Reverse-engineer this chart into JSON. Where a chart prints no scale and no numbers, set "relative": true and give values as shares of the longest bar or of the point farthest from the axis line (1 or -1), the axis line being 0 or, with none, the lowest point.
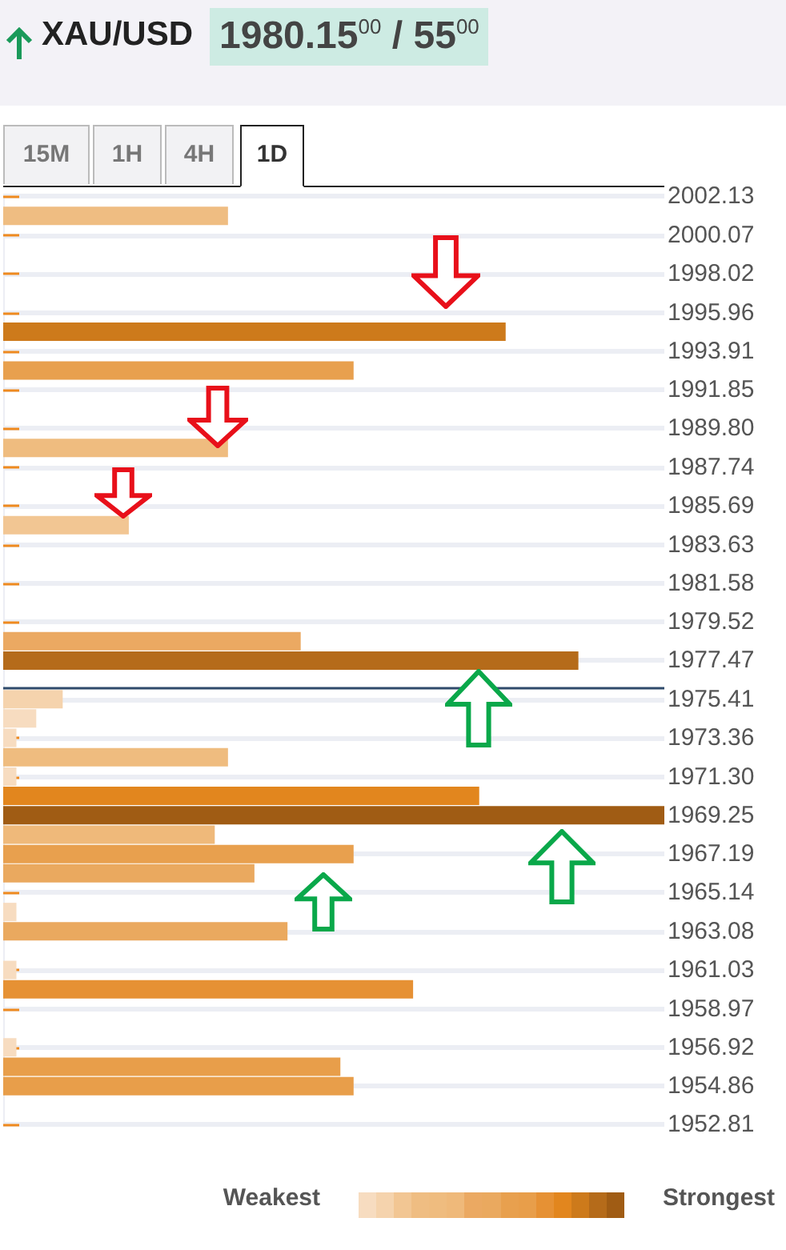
{
  "chart_data": {
    "type": "bar",
    "orientation": "horizontal",
    "relative": true,
    "title": "XAU/USD",
    "subtitle": "1980.15$^{00}$ / 55$^{00}$",
    "annotations": [
      "15M",
      "1H",
      "4H",
      "1D",
      "Weakest",
      "Strongest"
    ],
    "x": [
      2001.1,
      1994.94,
      1992.88,
      1988.77,
      1984.66,
      1978.5,
      1977.47,
      1975.41,
      1974.39,
      1973.36,
      1972.33,
      1971.3,
      1970.28,
      1969.25,
      1968.22,
      1967.19,
      1966.17,
      1964.11,
      1963.08,
      1961.03,
      1960.0,
      1956.92,
      1955.89,
      1954.86
    ],
    "values": [
      0.34,
      0.76,
      0.53,
      0.34,
      0.19,
      0.45,
      0.87,
      0.09,
      0.05,
      0.02,
      0.34,
      0.02,
      0.72,
      1,
      0.32,
      0.53,
      0.38,
      0.02,
      0.43,
      0.02,
      0.62,
      0.02,
      0.51,
      0.53
    ],
    "colors": [
      "#efbd82",
      "#cd7a1b",
      "#e8a04e",
      "#efbc7f",
      "#f2c693",
      "#eba962",
      "#b56b1a",
      "#f5d3ad",
      "#f7dcc0",
      "#f7dcc0",
      "#efbc7f",
      "#f7dcc0",
      "#e2861e",
      "#a05c14",
      "#efb97a",
      "#e8a04e",
      "#eaa95f",
      "#f7dcc0",
      "#eaa95f",
      "#f7dcc0",
      "#e69134",
      "#f7dcc0",
      "#e89e4a",
      "#e89e4a"
    ],
    "ylim": [
      1952.81,
      2002.13
    ],
    "yticks": [
      2002.13,
      2000.07,
      1998.02,
      1995.96,
      1993.91,
      1991.85,
      {
        "value": 1989.8,
        "label": "1989.80"
      },
      1987.74,
      1985.69,
      1983.63,
      1981.58,
      1979.52,
      1977.47,
      1975.41,
      1973.36,
      {
        "value": 1971.3,
        "label": "1971.30"
      },
      1969.25,
      1967.19,
      1965.14,
      1963.08,
      1961.03,
      1958.97,
      1956.92,
      1954.86,
      1952.81
    ],
    "grid": "y",
    "ref_lines": [
      {
        "axis": "y",
        "value": 1976.05,
        "color": "#2f4a6b"
      }
    ]
  }
}
